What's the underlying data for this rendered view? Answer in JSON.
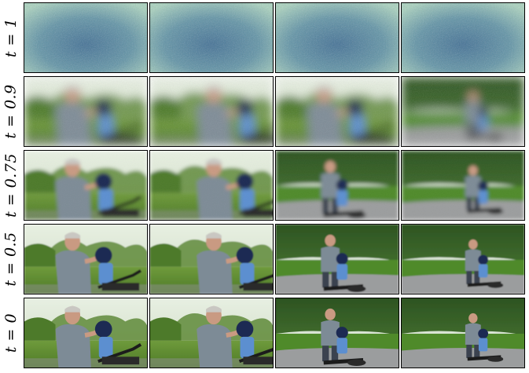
{
  "figure": {
    "rows": [
      {
        "label": "t = 1",
        "noise": "full",
        "frames": [
          "noise",
          "noise",
          "noise",
          "noise"
        ]
      },
      {
        "label": "t = 0.9",
        "noise": "heavy",
        "frames": [
          "blurred-man-child-yard",
          "blurred-man-child-yard",
          "blurred-man-child-yard",
          "blurred-man-child-driveway"
        ]
      },
      {
        "label": "t = 0.75",
        "noise": "medium",
        "frames": [
          "man-helmet-child-bike",
          "man-helmet-child-bike",
          "man-child-bike-driveway",
          "man-child-bike-driveway"
        ]
      },
      {
        "label": "t = 0.5",
        "noise": "low",
        "frames": [
          "man-helmet-child-bike",
          "man-helmet-child-bike",
          "man-child-bike-driveway",
          "man-child-bike-driveway"
        ]
      },
      {
        "label": "t = 0",
        "noise": "none",
        "frames": [
          "man-helmet-child-bike",
          "man-helmet-child-bike",
          "man-child-bike-driveway",
          "man-child-bike-driveway"
        ]
      }
    ]
  }
}
